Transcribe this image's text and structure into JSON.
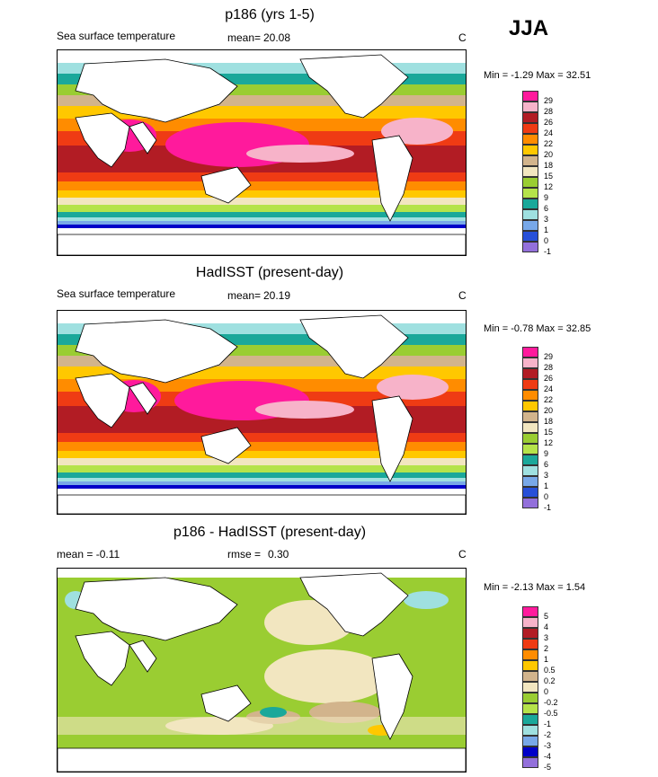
{
  "season": "JJA",
  "panels": [
    {
      "title": "p186 (yrs 1-5)",
      "left_label": "Sea surface temperature",
      "mean_label": "mean=",
      "mean_value": "20.08",
      "unit": "C",
      "minmax": "Min =  -1.29 Max =  32.51",
      "legend": {
        "labels": [
          "29",
          "28",
          "26",
          "24",
          "22",
          "20",
          "18",
          "15",
          "12",
          "9",
          "6",
          "3",
          "1",
          "0",
          "-1"
        ],
        "colors": [
          "#ff1a9c",
          "#f7b3c9",
          "#b21c24",
          "#ef3b14",
          "#ff8c00",
          "#ffc800",
          "#d2b48c",
          "#f2e6c0",
          "#9acd32",
          "#b5e34a",
          "#1aa89a",
          "#9fe0e0",
          "#78a8e8",
          "#2850d8",
          "#0000c8",
          "#9370db"
        ]
      }
    },
    {
      "title": "HadISST (present-day)",
      "left_label": "Sea surface temperature",
      "mean_label": "mean=",
      "mean_value": "20.19",
      "unit": "C",
      "minmax": "Min =  -0.78 Max =  32.85",
      "legend": {
        "labels": [
          "29",
          "28",
          "26",
          "24",
          "22",
          "20",
          "18",
          "15",
          "12",
          "9",
          "6",
          "3",
          "1",
          "0",
          "-1"
        ],
        "colors": [
          "#ff1a9c",
          "#f7b3c9",
          "#b21c24",
          "#ef3b14",
          "#ff8c00",
          "#ffc800",
          "#d2b48c",
          "#f2e6c0",
          "#9acd32",
          "#b5e34a",
          "#1aa89a",
          "#9fe0e0",
          "#78a8e8",
          "#2850d8",
          "#0000c8",
          "#9370db"
        ]
      }
    },
    {
      "title": "p186 - HadISST (present-day)",
      "left_label": "mean =  -0.11",
      "mean_label": "rmse =",
      "mean_value": "0.30",
      "unit": "C",
      "minmax": "Min =  -2.13 Max =   1.54",
      "legend": {
        "labels": [
          "5",
          "4",
          "3",
          "2",
          "1",
          "0.5",
          "0.2",
          "0",
          "-0.2",
          "-0.5",
          "-1",
          "-2",
          "-3",
          "-4",
          "-5"
        ],
        "colors": [
          "#ff1a9c",
          "#f7b3c9",
          "#b21c24",
          "#ef3b14",
          "#ff8c00",
          "#ffc800",
          "#d2b48c",
          "#f2e6c0",
          "#9acd32",
          "#b5e34a",
          "#1aa89a",
          "#9fe0e0",
          "#78a8e8",
          "#2850d8",
          "#0000c8",
          "#9370db"
        ]
      }
    }
  ]
}
